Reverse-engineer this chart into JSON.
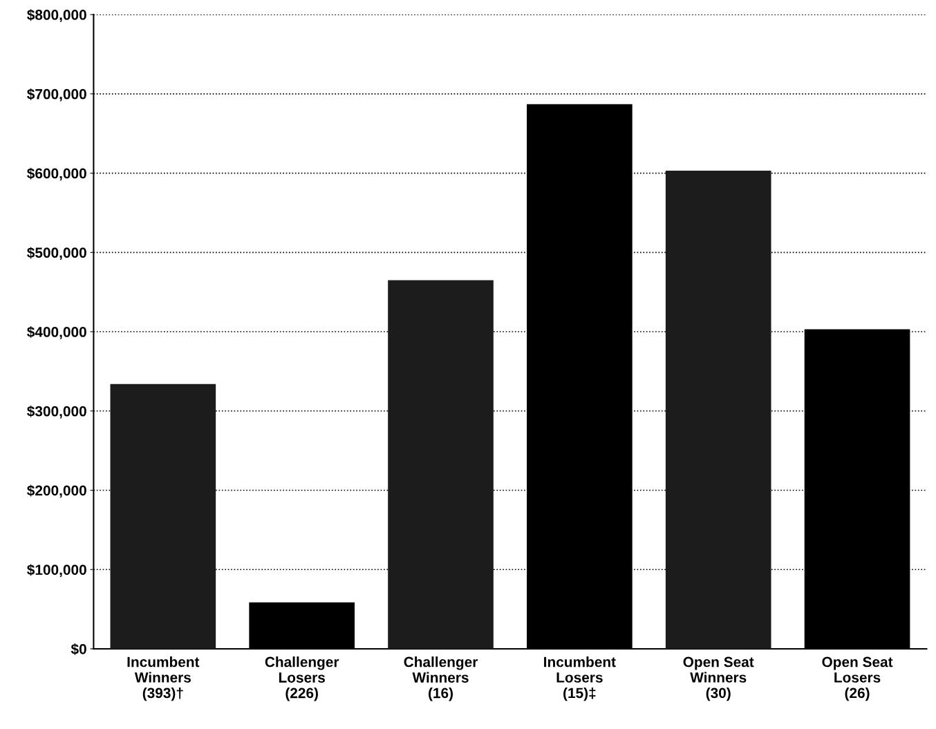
{
  "chart_data": {
    "type": "bar",
    "categories": [
      "Incumbent\nWinners\n(393)†",
      "Challenger\nLosers\n(226)",
      "Challenger\nWinners\n(16)",
      "Incumbent\nLosers\n(15)‡",
      "Open Seat\nWinners\n(30)",
      "Open Seat\nLosers\n(26)"
    ],
    "values": [
      334000,
      58500,
      465000,
      687000,
      603000,
      403000
    ],
    "colors": [
      "#1c1c1c",
      "#000000",
      "#1c1c1c",
      "#000000",
      "#1c1c1c",
      "#000000"
    ],
    "ylim": [
      0,
      800000
    ],
    "yticks": [
      {
        "value": 0,
        "label": "$0"
      },
      {
        "value": 100000,
        "label": "$100,000"
      },
      {
        "value": 200000,
        "label": "$200,000"
      },
      {
        "value": 300000,
        "label": "$300,000"
      },
      {
        "value": 400000,
        "label": "$400,000"
      },
      {
        "value": 500000,
        "label": "$500,000"
      },
      {
        "value": 600000,
        "label": "$600,000"
      },
      {
        "value": 700000,
        "label": "$700,000"
      },
      {
        "value": 800000,
        "label": "$800,000"
      }
    ],
    "grid": "y"
  }
}
